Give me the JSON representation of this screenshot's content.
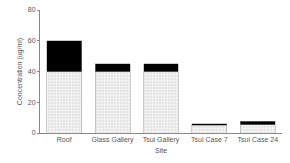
{
  "chart_data": {
    "type": "bar",
    "stacked": true,
    "grid": false,
    "x_label": "Site",
    "y_label": "Concentration (ug/ml)",
    "categories": [
      "Roof",
      "Glass Gallery",
      "Tsui Gallery",
      "Tsui Case 7",
      "Tsui Case 24"
    ],
    "series": [
      {
        "color": "#e6e6e6",
        "values": [
          40,
          40,
          40,
          5,
          5.5
        ]
      },
      {
        "color": "#000000",
        "values": [
          20,
          5,
          5,
          1,
          2
        ]
      }
    ],
    "ylim": [
      0,
      80
    ],
    "yticks": [
      0,
      20,
      40,
      60,
      80
    ]
  }
}
